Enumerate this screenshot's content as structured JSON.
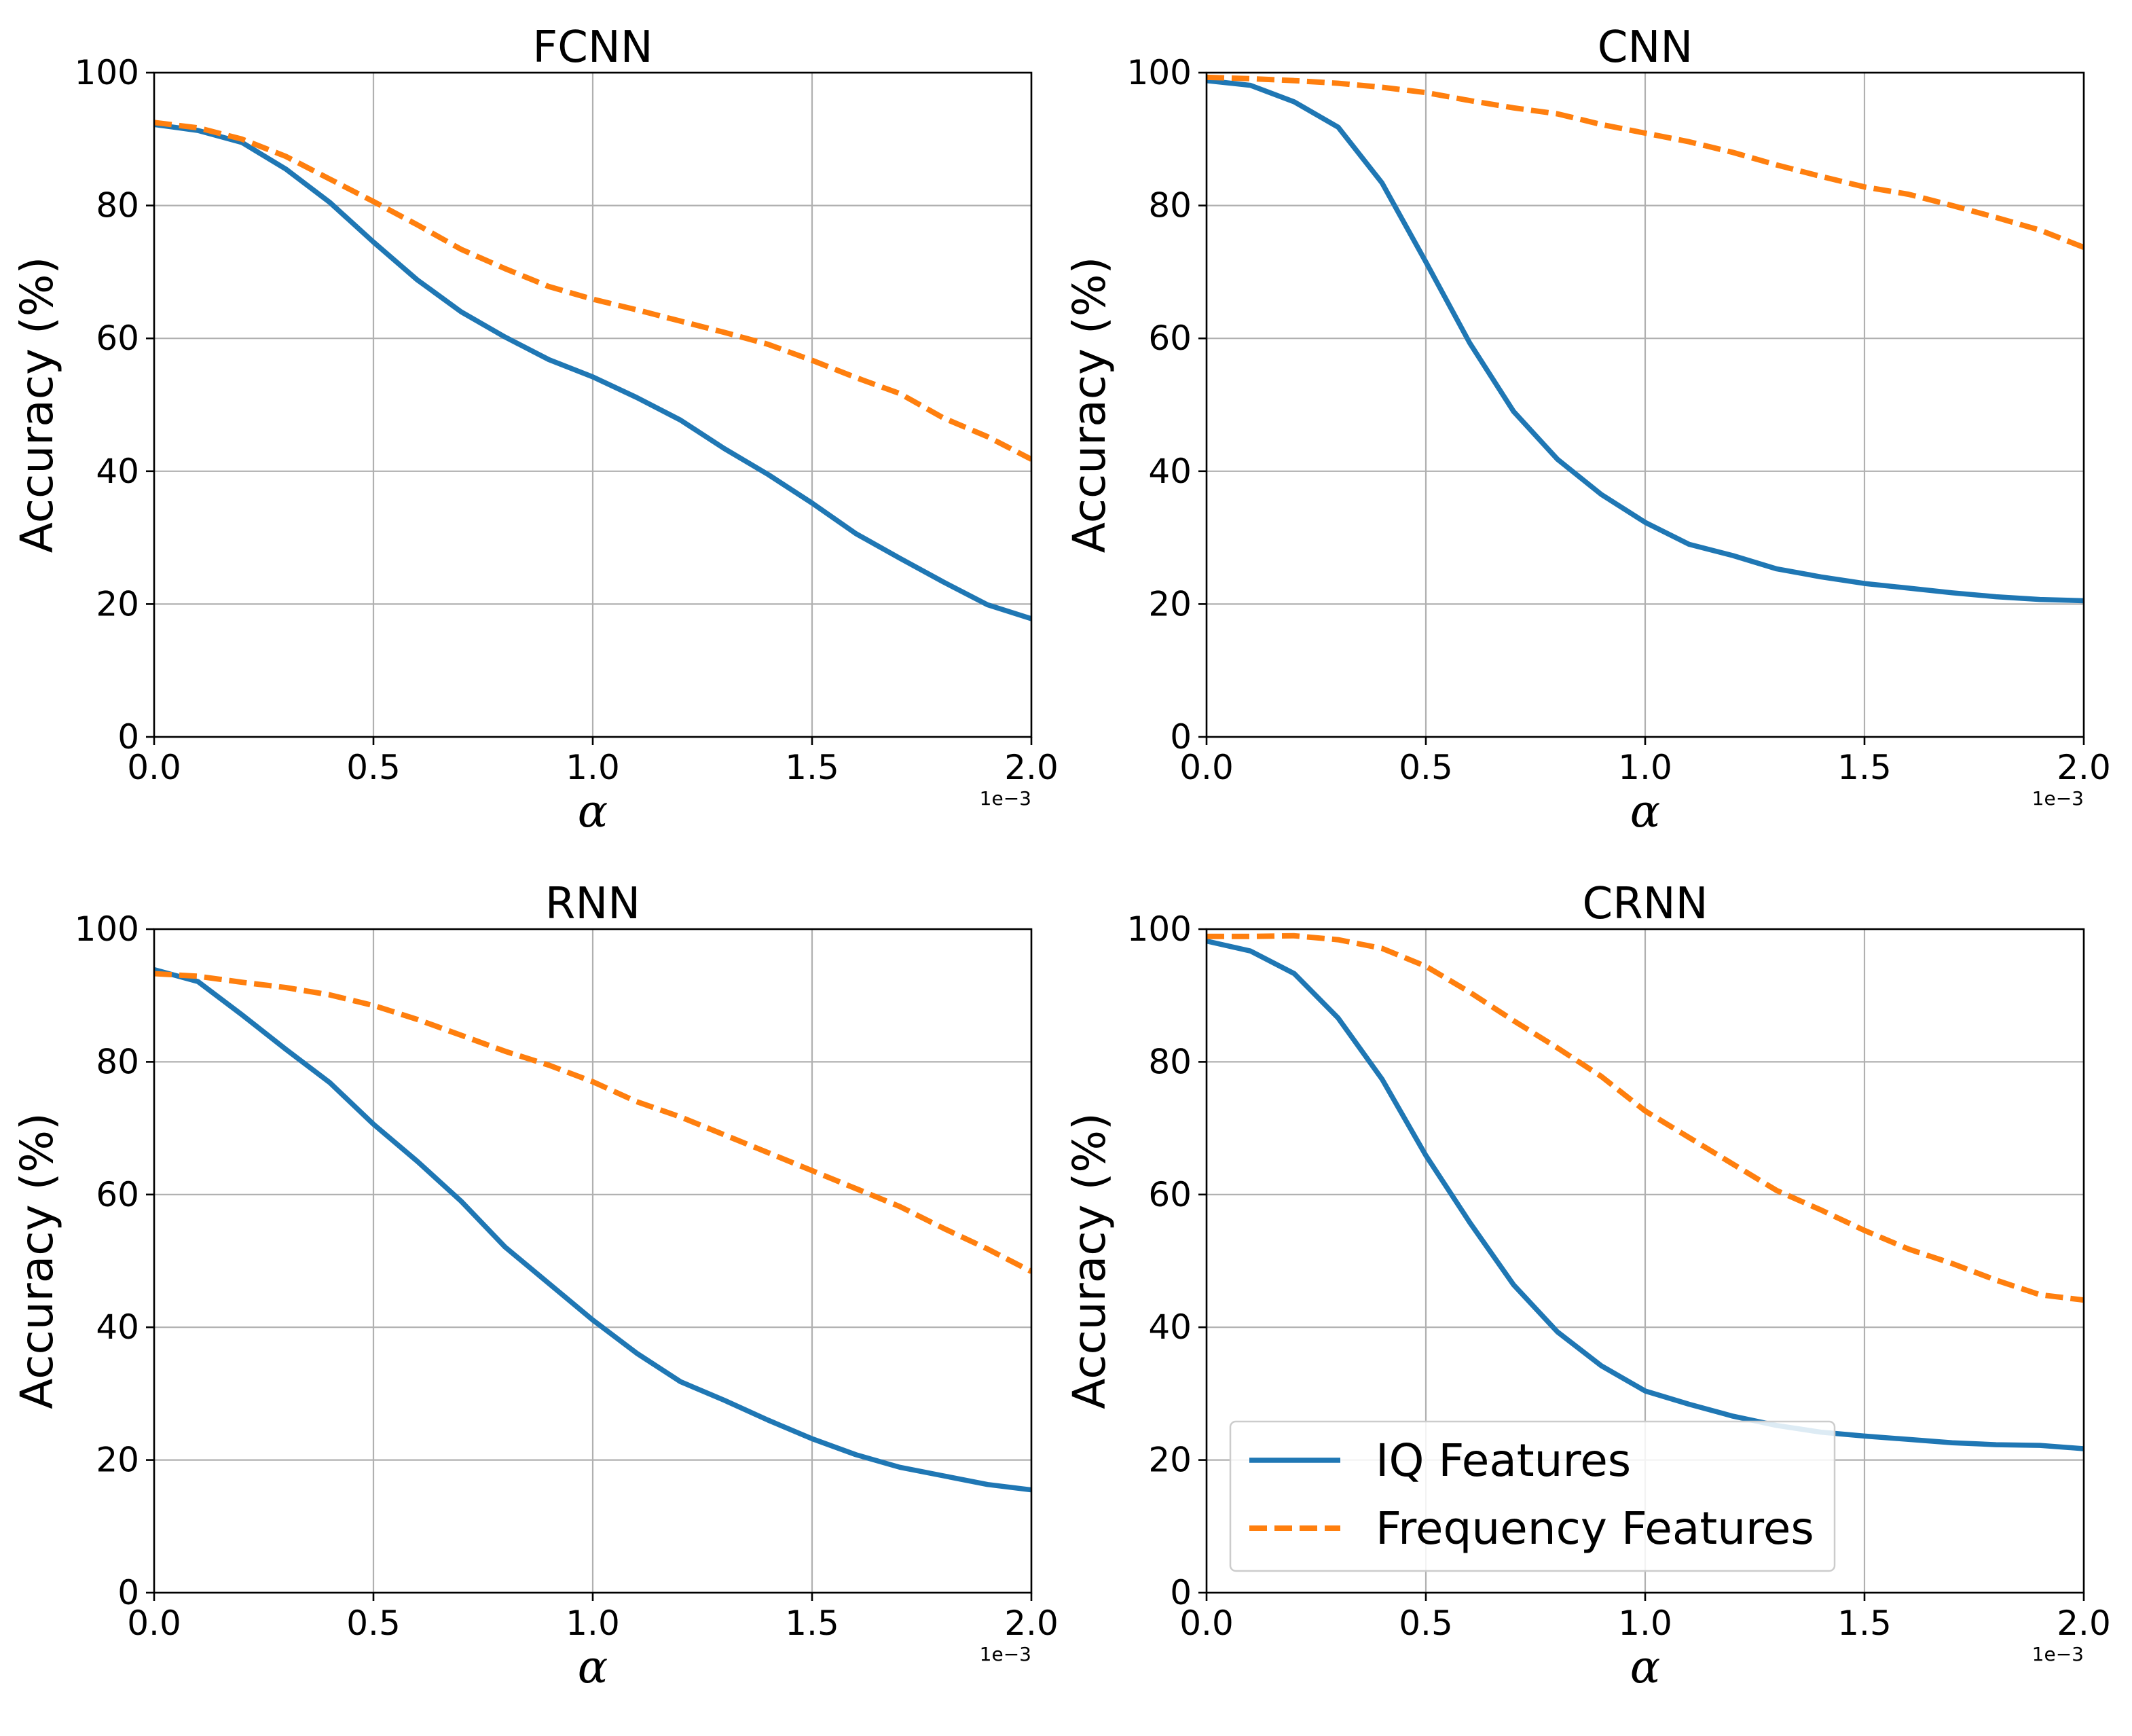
{
  "chart_data": [
    {
      "type": "line",
      "title": "FCNN",
      "xlabel": "α",
      "ylabel": "Accuracy (%)",
      "x_offset_label": "1e−3",
      "xlim": [
        0.0,
        2.0
      ],
      "ylim": [
        0,
        100
      ],
      "xticks": [
        "0.0",
        "0.5",
        "1.0",
        "1.5",
        "2.0"
      ],
      "yticks": [
        "0",
        "20",
        "40",
        "60",
        "80",
        "100"
      ],
      "grid": true,
      "x": [
        0.0,
        0.1,
        0.2,
        0.3,
        0.4,
        0.5,
        0.6,
        0.7,
        0.8,
        0.9,
        1.0,
        1.1,
        1.2,
        1.3,
        1.4,
        1.5,
        1.6,
        1.7,
        1.8,
        1.9,
        2.0
      ],
      "series": [
        {
          "name": "IQ Features",
          "color": "#1f77b4",
          "style": "solid",
          "values": [
            92.2,
            91.3,
            89.5,
            85.5,
            80.5,
            74.5,
            68.8,
            64.0,
            60.2,
            56.8,
            54.2,
            51.1,
            47.7,
            43.4,
            39.5,
            35.2,
            30.6,
            26.9,
            23.3,
            19.9,
            17.8
          ]
        },
        {
          "name": "Frequency Features",
          "color": "#ff7f0e",
          "style": "dashed",
          "values": [
            92.5,
            91.7,
            90.0,
            87.4,
            84.0,
            80.6,
            77.1,
            73.4,
            70.5,
            67.8,
            65.9,
            64.3,
            62.6,
            60.9,
            59.1,
            56.7,
            54.1,
            51.7,
            48.0,
            45.2,
            41.8
          ]
        }
      ]
    },
    {
      "type": "line",
      "title": "CNN",
      "xlabel": "α",
      "ylabel": "Accuracy (%)",
      "x_offset_label": "1e−3",
      "xlim": [
        0.0,
        2.0
      ],
      "ylim": [
        0,
        100
      ],
      "xticks": [
        "0.0",
        "0.5",
        "1.0",
        "1.5",
        "2.0"
      ],
      "yticks": [
        "0",
        "20",
        "40",
        "60",
        "80",
        "100"
      ],
      "grid": true,
      "x": [
        0.0,
        0.1,
        0.2,
        0.3,
        0.4,
        0.5,
        0.6,
        0.7,
        0.8,
        0.9,
        1.0,
        1.1,
        1.2,
        1.3,
        1.4,
        1.5,
        1.6,
        1.7,
        1.8,
        1.9,
        2.0
      ],
      "series": [
        {
          "name": "IQ Features",
          "color": "#1f77b4",
          "style": "solid",
          "values": [
            98.8,
            98.1,
            95.6,
            91.8,
            83.4,
            71.5,
            59.3,
            49.0,
            41.8,
            36.5,
            32.3,
            29.0,
            27.3,
            25.3,
            24.1,
            23.1,
            22.4,
            21.7,
            21.1,
            20.7,
            20.5
          ]
        },
        {
          "name": "Frequency Features",
          "color": "#ff7f0e",
          "style": "dashed",
          "values": [
            99.3,
            99.1,
            98.8,
            98.4,
            97.8,
            97.0,
            95.8,
            94.7,
            93.8,
            92.2,
            90.9,
            89.6,
            88.0,
            86.1,
            84.4,
            82.8,
            81.7,
            80.0,
            78.2,
            76.3,
            73.7
          ]
        }
      ]
    },
    {
      "type": "line",
      "title": "RNN",
      "xlabel": "α",
      "ylabel": "Accuracy (%)",
      "x_offset_label": "1e−3",
      "xlim": [
        0.0,
        2.0
      ],
      "ylim": [
        0,
        100
      ],
      "xticks": [
        "0.0",
        "0.5",
        "1.0",
        "1.5",
        "2.0"
      ],
      "yticks": [
        "0",
        "20",
        "40",
        "60",
        "80",
        "100"
      ],
      "grid": true,
      "x": [
        0.0,
        0.1,
        0.2,
        0.3,
        0.4,
        0.5,
        0.6,
        0.7,
        0.8,
        0.9,
        1.0,
        1.1,
        1.2,
        1.3,
        1.4,
        1.5,
        1.6,
        1.7,
        1.8,
        1.9,
        2.0
      ],
      "series": [
        {
          "name": "IQ Features",
          "color": "#1f77b4",
          "style": "solid",
          "values": [
            93.9,
            92.1,
            87.1,
            81.9,
            76.9,
            70.6,
            65.0,
            59.0,
            52.1,
            46.6,
            41.1,
            36.1,
            31.8,
            29.0,
            26.0,
            23.2,
            20.8,
            18.9,
            17.6,
            16.3,
            15.5
          ]
        },
        {
          "name": "Frequency Features",
          "color": "#ff7f0e",
          "style": "dashed",
          "values": [
            93.3,
            92.9,
            92.0,
            91.2,
            90.1,
            88.5,
            86.4,
            84.0,
            81.6,
            79.5,
            77.0,
            74.0,
            71.7,
            69.0,
            66.3,
            63.6,
            60.9,
            58.2,
            54.9,
            51.8,
            48.4
          ]
        }
      ]
    },
    {
      "type": "line",
      "title": "CRNN",
      "xlabel": "α",
      "ylabel": "Accuracy (%)",
      "x_offset_label": "1e−3",
      "xlim": [
        0.0,
        2.0
      ],
      "ylim": [
        0,
        100
      ],
      "xticks": [
        "0.0",
        "0.5",
        "1.0",
        "1.5",
        "2.0"
      ],
      "yticks": [
        "0",
        "20",
        "40",
        "60",
        "80",
        "100"
      ],
      "grid": true,
      "legend": "lower-left",
      "x": [
        0.0,
        0.1,
        0.2,
        0.3,
        0.4,
        0.5,
        0.6,
        0.7,
        0.8,
        0.9,
        1.0,
        1.1,
        1.2,
        1.3,
        1.4,
        1.5,
        1.6,
        1.7,
        1.8,
        1.9,
        2.0
      ],
      "series": [
        {
          "name": "IQ Features",
          "color": "#1f77b4",
          "style": "solid",
          "values": [
            98.2,
            96.7,
            93.3,
            86.6,
            77.4,
            65.9,
            55.8,
            46.4,
            39.3,
            34.2,
            30.4,
            28.4,
            26.6,
            25.2,
            24.2,
            23.6,
            23.1,
            22.6,
            22.3,
            22.2,
            21.7
          ]
        },
        {
          "name": "Frequency Features",
          "color": "#ff7f0e",
          "style": "dashed",
          "values": [
            98.9,
            98.9,
            99.0,
            98.4,
            97.1,
            94.4,
            90.5,
            86.2,
            82.1,
            77.8,
            72.6,
            68.6,
            64.6,
            60.6,
            57.7,
            54.6,
            51.8,
            49.6,
            47.1,
            44.9,
            44.1
          ]
        }
      ]
    }
  ]
}
